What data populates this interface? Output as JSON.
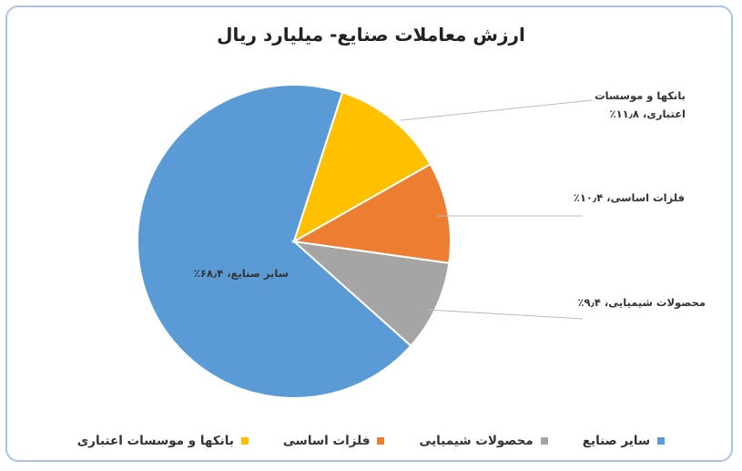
{
  "chart_data": {
    "type": "pie",
    "title": "ارزش معاملات صنایع- میلیارد ریال",
    "categories": [
      "سایر صنایع",
      "محصولات شیمیایی",
      "فلزات اساسی",
      "بانکها و موسسات اعتباری"
    ],
    "values": [
      68.4,
      9.4,
      10.4,
      11.8
    ],
    "value_labels": [
      "سایر صنایع، ۶۸٫۴٪",
      "محصولات شیمیایی، ۹٫۴٪",
      "فلزات اساسی، ۱۰٫۴٪",
      "بانکها و موسسات اعتباری، ۱۱٫۸٪"
    ],
    "colors": [
      "#5b9bd5",
      "#a5a5a5",
      "#ed7d31",
      "#ffc000"
    ],
    "legend": "bottom"
  }
}
